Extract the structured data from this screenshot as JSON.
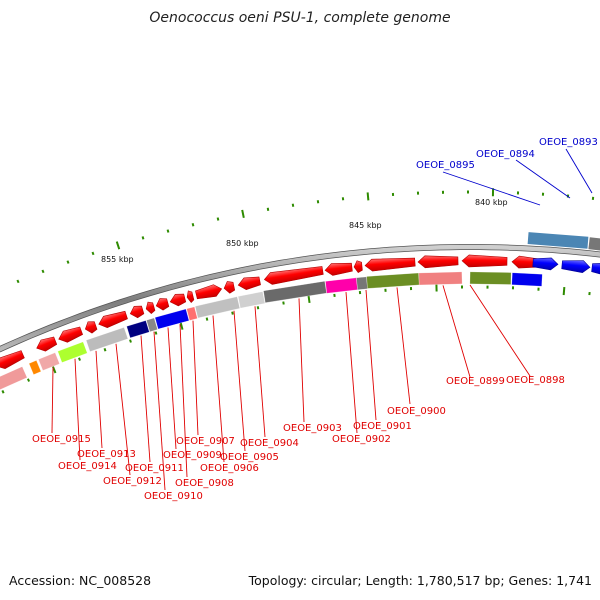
{
  "title": "Oenococcus oeni PSU-1, complete genome",
  "footer": {
    "accession": "Accession: NC_008528",
    "summary": "Topology: circular; Length: 1,780,517 bp; Genes: 1,741"
  },
  "scale": {
    "labels": [
      "840 kbp",
      "845 kbp",
      "850 kbp",
      "855 kbp"
    ]
  },
  "genes": {
    "red": [
      "OEOE_0898",
      "OEOE_0899",
      "OEOE_0900",
      "OEOE_0901",
      "OEOE_0902",
      "OEOE_0903",
      "OEOE_0904",
      "OEOE_0905",
      "OEOE_0906",
      "OEOE_0907",
      "OEOE_0908",
      "OEOE_0909",
      "OEOE_0910",
      "OEOE_0911",
      "OEOE_0912",
      "OEOE_0913",
      "OEOE_0914",
      "OEOE_0915"
    ],
    "blue": [
      "OEOE_0893",
      "OEOE_0894",
      "OEOE_0895"
    ]
  },
  "colors": {
    "forward_strand": "#ff0000",
    "reverse_strand": "#0000ff",
    "backbone": "#888888",
    "tick": "#2e8b00",
    "label_red": "#e00000",
    "label_blue": "#0000cc"
  }
}
